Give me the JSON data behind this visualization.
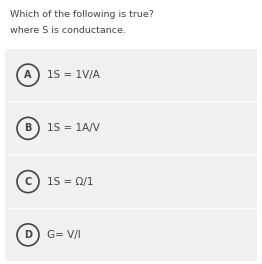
{
  "title_line1": "Which of the following is true?",
  "title_line2": "where S is conductance.",
  "options": [
    {
      "label": "A",
      "text": "1S = 1V/A"
    },
    {
      "label": "B",
      "text": "1S = 1A/V"
    },
    {
      "label": "C",
      "text": "1S = Ω/1"
    },
    {
      "label": "D",
      "text": "G= V/I"
    }
  ],
  "bg_color": "#ffffff",
  "option_bg_color": "#f0f0f0",
  "text_color": "#444444",
  "circle_edge_color": "#444444",
  "title_fontsize": 6.8,
  "option_fontsize": 7.5,
  "label_fontsize": 7.0,
  "fig_width": 2.62,
  "fig_height": 2.64,
  "dpi": 100
}
